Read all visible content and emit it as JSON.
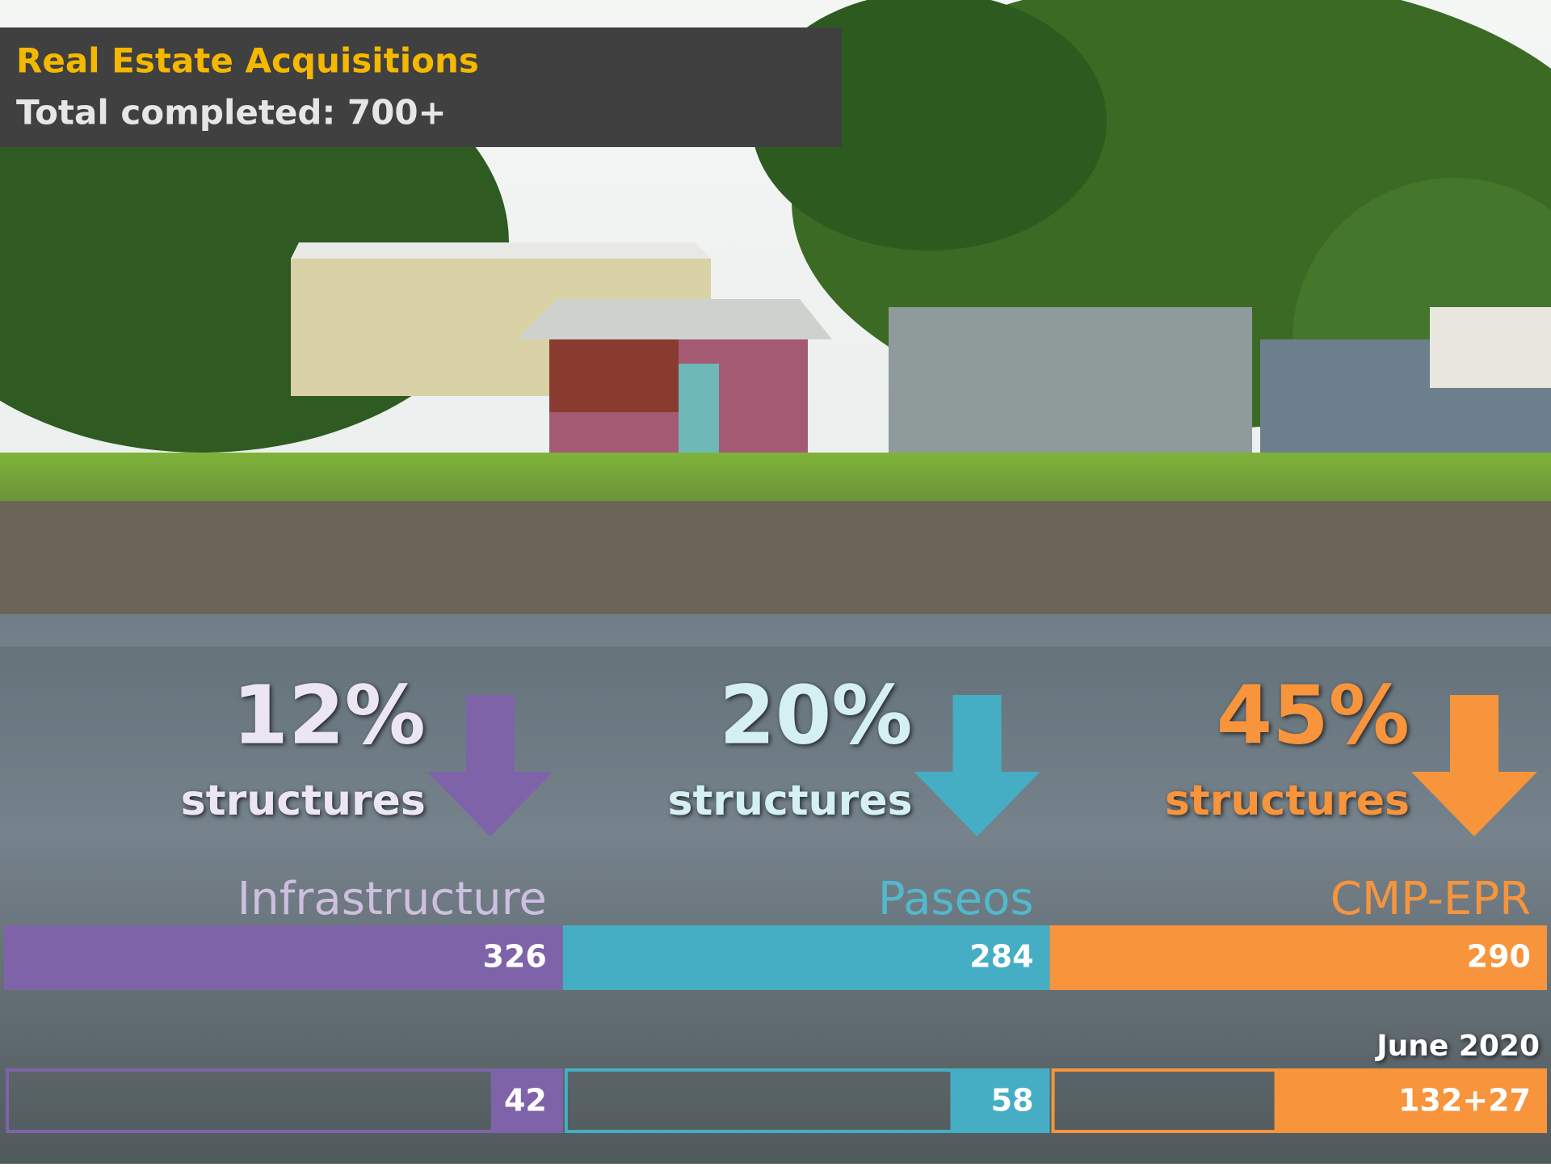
{
  "chart_data": {
    "type": "bar",
    "title": "Real Estate Acquisitions",
    "subtitle": "Total completed: 700+",
    "categories": [
      "Infrastructure",
      "Paseos",
      "CMP-EPR"
    ],
    "colors": [
      "#7f63a8",
      "#45aec4",
      "#f7943c"
    ],
    "label_colors": [
      "#cdbfe0",
      "#52b8cc",
      "#f7943c"
    ],
    "percent_colors": [
      "#ece6f4",
      "#d4f0f2",
      "#f7943c"
    ],
    "totals": {
      "values": [
        326,
        284,
        290
      ]
    },
    "completed": {
      "date": "June 2020",
      "values": [
        42,
        58,
        159
      ],
      "value_labels": [
        "42",
        "58",
        "132+27"
      ]
    },
    "shares": {
      "unit": "structures",
      "values": [
        12,
        20,
        45
      ],
      "value_labels": [
        "12%",
        "20%",
        "45%"
      ]
    }
  }
}
